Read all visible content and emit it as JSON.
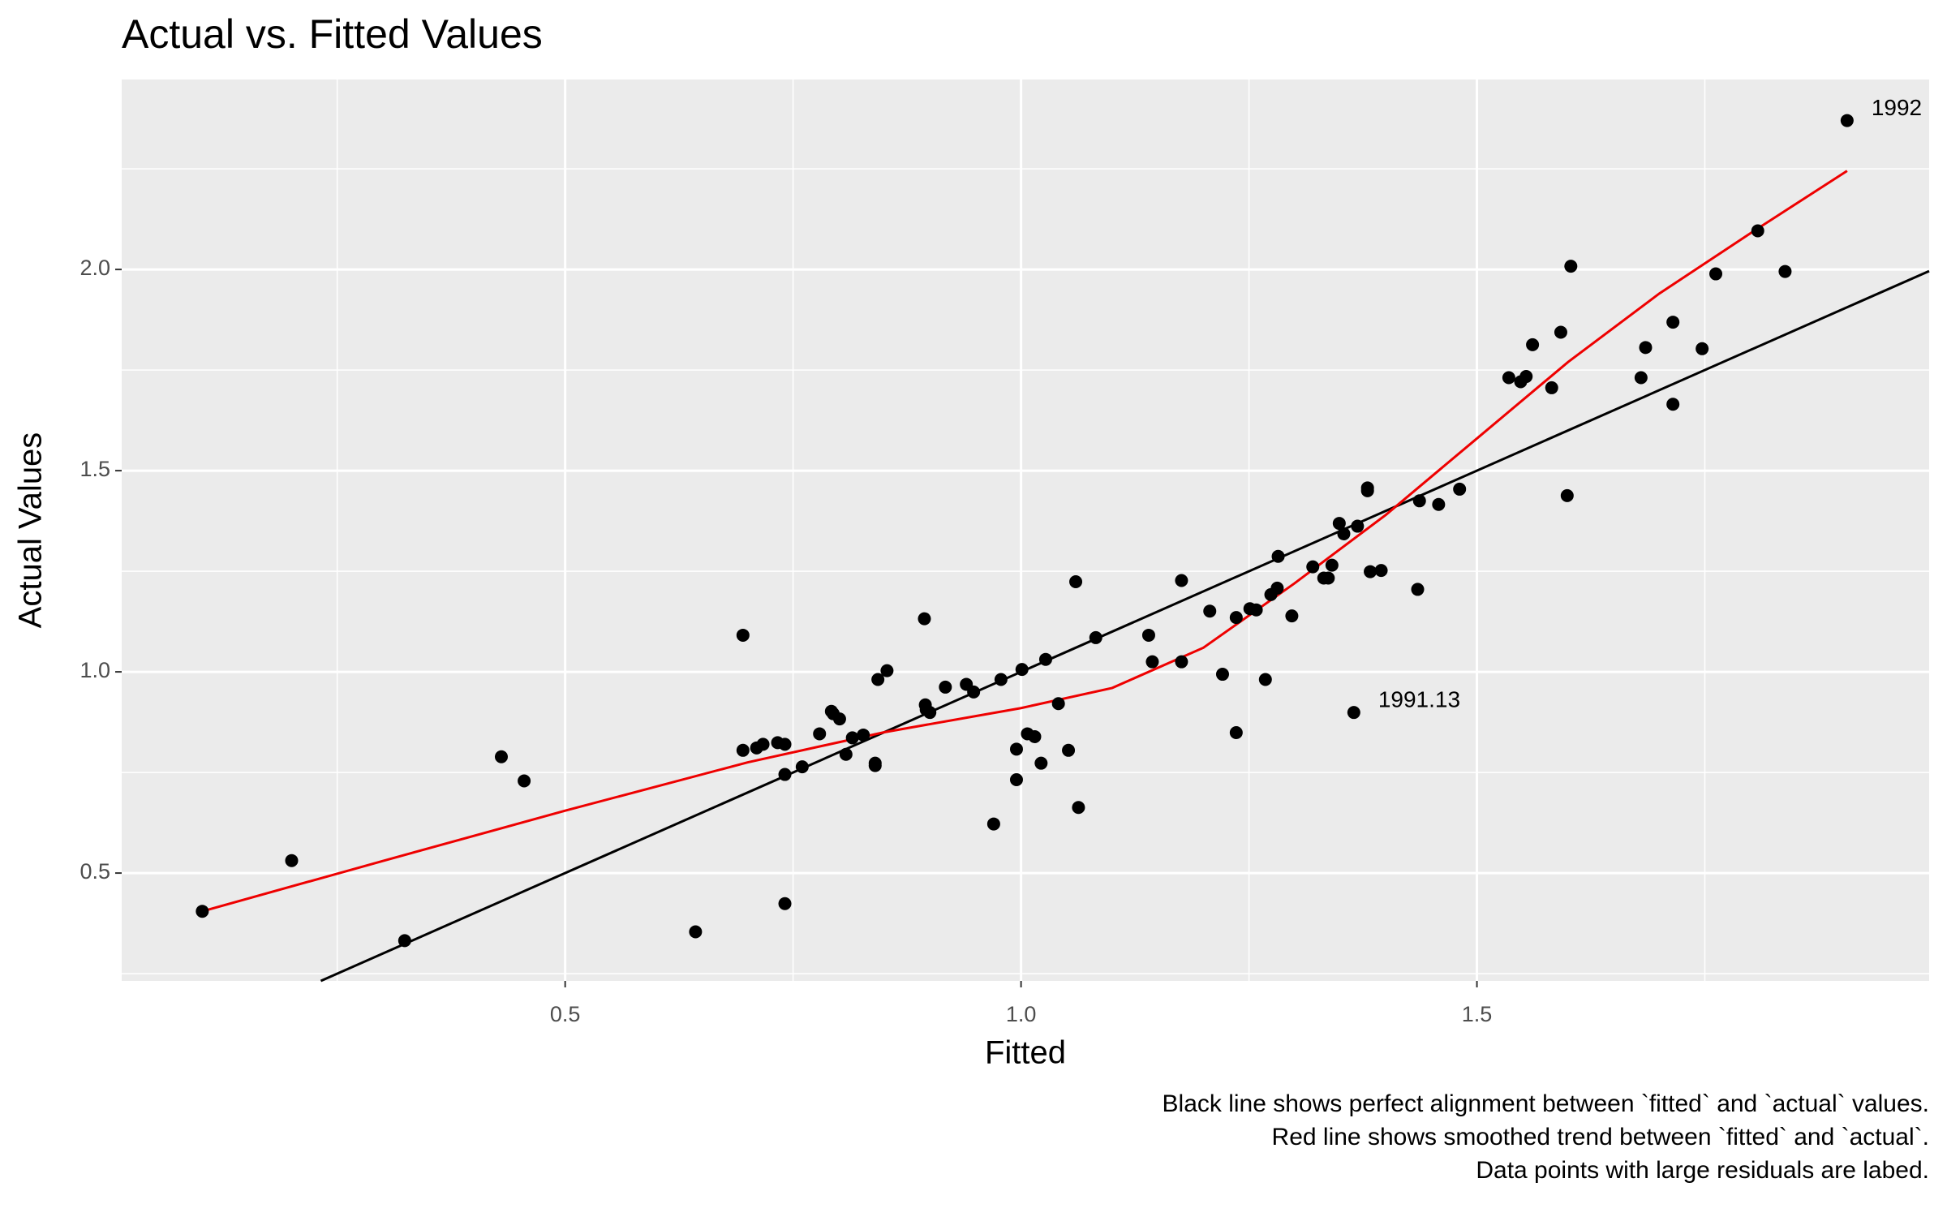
{
  "chart_data": {
    "type": "scatter",
    "title": "Actual vs. Fitted Values",
    "x_label": "Fitted",
    "y_label": "Actual Values",
    "caption": [
      "Black line shows perfect alignment between `fitted` and `actual` values.",
      "Red line shows smoothed trend between `fitted` and `actual`.",
      "Data points with large residuals are labed."
    ],
    "xlim": [
      0.0136,
      1.996
    ],
    "ylim": [
      0.232,
      2.472
    ],
    "xticks": [
      0.5,
      {
        "value": 1.0,
        "label": "1.0"
      },
      1.5
    ],
    "yticks": [
      0.5,
      {
        "value": 1.0,
        "label": "1.0"
      },
      1.5,
      {
        "value": 2.0,
        "label": "2.0"
      }
    ],
    "minor_xticks": [
      0.25,
      0.75,
      1.25,
      1.75
    ],
    "minor_yticks": [
      0.25,
      0.75,
      1.25,
      1.75,
      2.25
    ],
    "grid": true,
    "point_color": "#000000",
    "identity_line_color": "#000000",
    "x": [
      0.102,
      0.2,
      0.324,
      0.43,
      0.455,
      0.643,
      0.695,
      0.695,
      0.71,
      0.717,
      0.733,
      0.741,
      0.741,
      0.741,
      0.76,
      0.779,
      0.792,
      0.794,
      0.801,
      0.808,
      0.815,
      0.827,
      0.84,
      0.84,
      0.843,
      0.853,
      0.894,
      0.895,
      0.896,
      0.9,
      0.917,
      0.94,
      0.948,
      0.97,
      0.978,
      0.995,
      0.995,
      1.001,
      1.007,
      1.015,
      1.022,
      1.027,
      1.041,
      1.052,
      1.06,
      1.063,
      1.082,
      1.14,
      1.144,
      1.176,
      1.176,
      1.207,
      1.221,
      1.236,
      1.236,
      1.251,
      1.258,
      1.268,
      1.274,
      1.281,
      1.282,
      1.297,
      1.32,
      1.332,
      1.337,
      1.341,
      1.349,
      1.354,
      1.365,
      1.369,
      1.38,
      1.38,
      1.383,
      1.395,
      1.435,
      1.437,
      1.458,
      1.481,
      1.535,
      1.548,
      1.554,
      1.561,
      1.582,
      1.592,
      1.599,
      1.603,
      1.68,
      1.685,
      1.715,
      1.715,
      1.747,
      1.762,
      1.808,
      1.838,
      1.906
    ],
    "y": [
      0.405,
      0.531,
      0.332,
      0.789,
      0.729,
      0.354,
      1.091,
      0.805,
      0.811,
      0.82,
      0.824,
      0.82,
      0.745,
      0.424,
      0.764,
      0.846,
      0.902,
      0.896,
      0.883,
      0.795,
      0.836,
      0.843,
      0.773,
      0.767,
      0.981,
      1.003,
      1.132,
      0.918,
      0.906,
      0.899,
      0.962,
      0.969,
      0.95,
      0.622,
      0.981,
      0.808,
      0.732,
      1.006,
      0.846,
      0.839,
      0.773,
      1.031,
      0.921,
      0.805,
      1.224,
      0.663,
      1.085,
      1.091,
      1.025,
      1.227,
      1.025,
      1.151,
      0.994,
      1.135,
      0.849,
      1.157,
      1.154,
      0.981,
      1.192,
      1.208,
      1.287,
      1.139,
      1.261,
      1.233,
      1.233,
      1.265,
      1.369,
      1.343,
      0.899,
      1.362,
      1.457,
      1.45,
      1.249,
      1.252,
      1.205,
      1.425,
      1.416,
      1.454,
      1.731,
      1.721,
      1.734,
      1.813,
      1.706,
      1.844,
      1.438,
      2.008,
      1.731,
      1.806,
      1.869,
      1.665,
      1.803,
      1.989,
      2.096,
      1.995,
      2.37
    ],
    "point_labels": [
      null,
      null,
      null,
      null,
      null,
      null,
      null,
      null,
      null,
      null,
      null,
      null,
      null,
      null,
      null,
      null,
      null,
      null,
      null,
      null,
      null,
      null,
      null,
      null,
      null,
      null,
      null,
      null,
      null,
      null,
      null,
      null,
      null,
      null,
      null,
      null,
      null,
      null,
      null,
      null,
      null,
      null,
      null,
      null,
      null,
      null,
      null,
      null,
      null,
      null,
      null,
      null,
      null,
      null,
      null,
      null,
      null,
      null,
      null,
      null,
      null,
      null,
      null,
      null,
      null,
      null,
      null,
      null,
      "1991.13",
      null,
      null,
      null,
      null,
      null,
      null,
      null,
      null,
      null,
      null,
      null,
      null,
      null,
      null,
      null,
      null,
      null,
      null,
      null,
      null,
      null,
      null,
      null,
      null,
      null,
      "1992"
    ],
    "smooth": {
      "color": "#ee0000",
      "x": [
        0.102,
        0.3,
        0.5,
        0.7,
        0.85,
        1.0,
        1.1,
        1.2,
        1.3,
        1.4,
        1.5,
        1.6,
        1.7,
        1.8,
        1.906
      ],
      "y": [
        0.405,
        0.53,
        0.655,
        0.775,
        0.85,
        0.91,
        0.96,
        1.06,
        1.22,
        1.39,
        1.58,
        1.77,
        1.94,
        2.09,
        2.245
      ]
    }
  }
}
